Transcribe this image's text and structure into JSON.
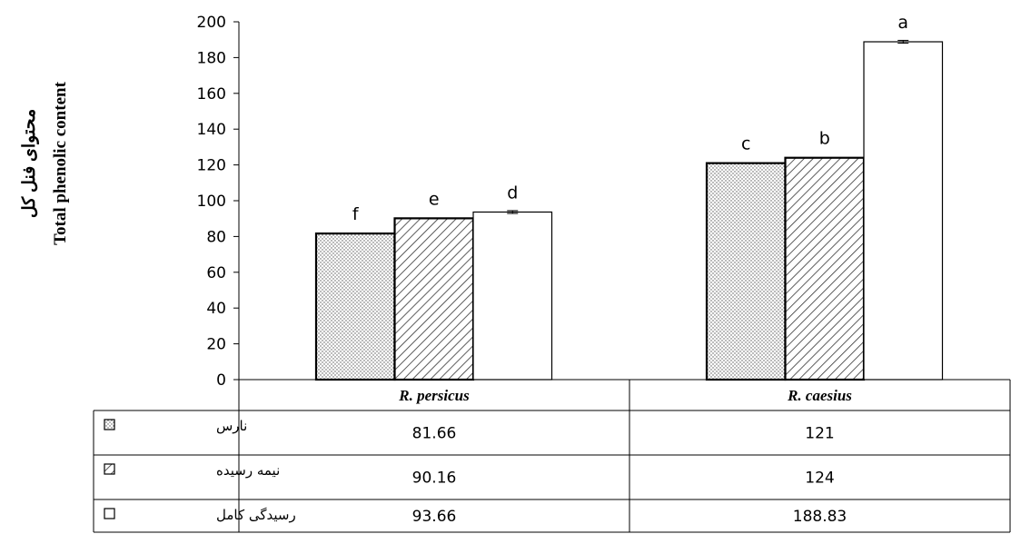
{
  "chart_data": {
    "type": "bar",
    "ylabel_fa": "محتوای فنل کل",
    "ylabel_en": "Total phenolic content",
    "ylim": [
      0,
      200
    ],
    "yticks": [
      0,
      20,
      40,
      60,
      80,
      100,
      120,
      140,
      160,
      180,
      200
    ],
    "categories": [
      "R. persicus",
      "R. caesius"
    ],
    "series": [
      {
        "name": "نارس",
        "values": [
          81.66,
          121
        ],
        "labels": [
          "81.66",
          "121"
        ],
        "letters": [
          "f",
          "c"
        ],
        "pattern": "dots",
        "errors": [
          0,
          0
        ]
      },
      {
        "name": "نیمه رسیده",
        "values": [
          90.16,
          124
        ],
        "labels": [
          "90.16",
          "124"
        ],
        "letters": [
          "e",
          "b"
        ],
        "pattern": "hatch",
        "errors": [
          0,
          0
        ]
      },
      {
        "name": "رسیدگی کامل",
        "values": [
          93.66,
          188.83
        ],
        "labels": [
          "93.66",
          "188.83"
        ],
        "letters": [
          "d",
          "a"
        ],
        "pattern": "white",
        "errors": [
          0.8,
          0.8
        ]
      }
    ],
    "grid": false,
    "legend": "data-table"
  }
}
